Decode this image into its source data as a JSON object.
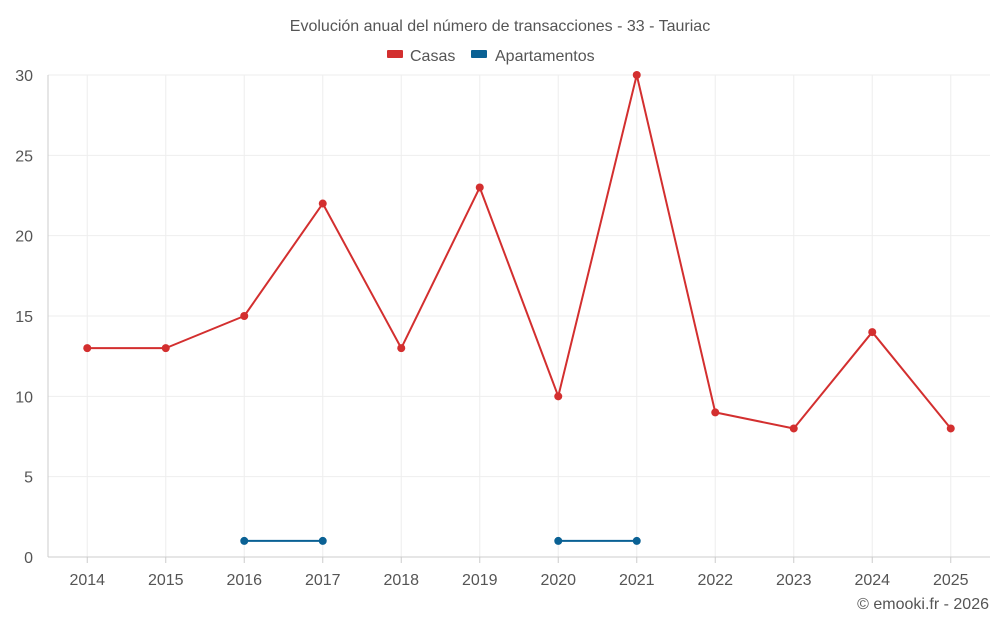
{
  "chart_data": {
    "type": "line",
    "title": "Evolución anual del número de transacciones - 33 - Tauriac",
    "categories": [
      "2014",
      "2015",
      "2016",
      "2017",
      "2018",
      "2019",
      "2020",
      "2021",
      "2022",
      "2023",
      "2024",
      "2025"
    ],
    "series": [
      {
        "name": "Casas",
        "color": "#d32f2f",
        "values": [
          13,
          13,
          15,
          22,
          13,
          23,
          10,
          30,
          9,
          8,
          14,
          8
        ]
      },
      {
        "name": "Apartamentos",
        "color": "#0a6194",
        "values": [
          null,
          null,
          1,
          1,
          null,
          null,
          1,
          1,
          null,
          null,
          null,
          null
        ]
      }
    ],
    "ylim": [
      0,
      30
    ],
    "yticks": [
      0,
      5,
      10,
      15,
      20,
      25,
      30
    ],
    "legend_position": "top-center",
    "grid": true,
    "xlabel": "",
    "ylabel": ""
  },
  "credit": "© emooki.fr - 2026"
}
